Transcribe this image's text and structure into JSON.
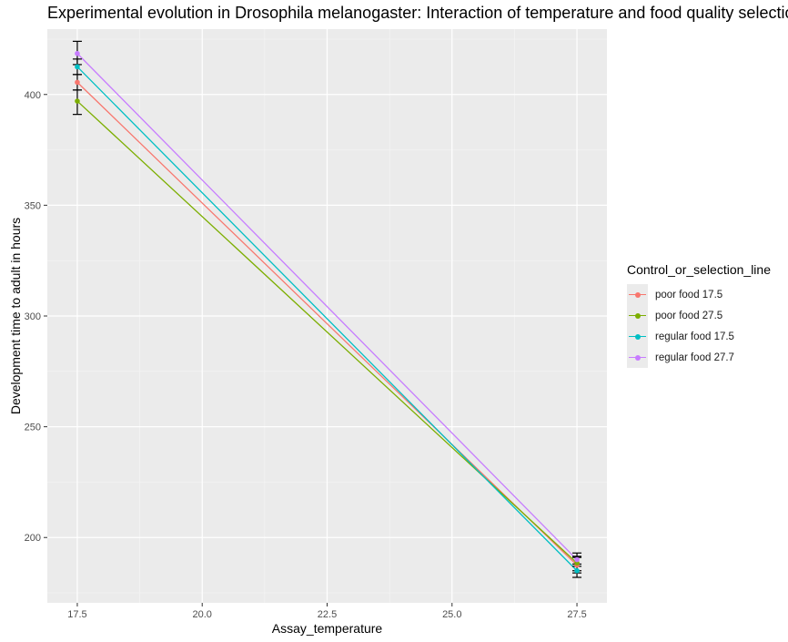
{
  "chart_data": {
    "type": "line",
    "title": "Experimental evolution in Drosophila melanogaster: Interaction of temperature and food quality selection",
    "xlabel": "Assay_temperature",
    "ylabel": "Development time to adult in hours",
    "x": [
      17.5,
      27.5
    ],
    "xlim": [
      16.9,
      28.1
    ],
    "ylim": [
      170.5,
      429.5
    ],
    "x_ticks": [
      "17.5",
      "20.0",
      "22.5",
      "25.0",
      "27.5"
    ],
    "x_tick_values": [
      17.5,
      20.0,
      22.5,
      25.0,
      27.5
    ],
    "y_ticks": [
      "200",
      "250",
      "300",
      "350",
      "400"
    ],
    "y_tick_values": [
      200,
      250,
      300,
      350,
      400
    ],
    "grid": true,
    "legend_position": "right",
    "legend_title": "Control_or_selection_line",
    "series": [
      {
        "name": "poor food 17.5",
        "color": "#F8766D",
        "values": [
          405.5,
          187.5
        ],
        "error": [
          [
            402,
            409
          ],
          [
            184,
            191
          ]
        ]
      },
      {
        "name": "poor food 27.5",
        "color": "#7CAE00",
        "values": [
          397,
          188.5
        ],
        "error": [
          [
            391,
            402
          ],
          [
            185,
            191.5
          ]
        ]
      },
      {
        "name": "regular food 17.5",
        "color": "#00BFC4",
        "values": [
          412.5,
          185
        ],
        "error": [
          [
            409,
            416
          ],
          [
            182,
            188
          ]
        ]
      },
      {
        "name": "regular food 27.7",
        "color": "#C77CFF",
        "values": [
          418.5,
          190
        ],
        "error": [
          [
            413.5,
            424
          ],
          [
            187,
            193
          ]
        ]
      }
    ]
  }
}
